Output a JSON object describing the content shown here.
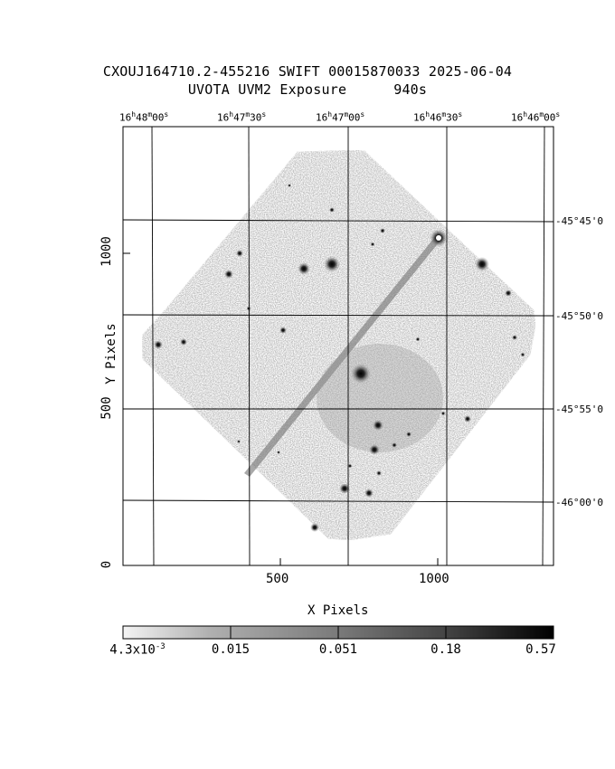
{
  "title": {
    "line1": "CXOUJ164710.2-455216 SWIFT 00015870033 2025-06-04",
    "line2_prefix": "UVOTA UVM2 Exposure",
    "line2_value": "940s"
  },
  "axes": {
    "xlabel": "X Pixels",
    "ylabel": "Y Pixels",
    "x_ticks": [
      "500",
      "1000"
    ],
    "y_ticks": [
      "0",
      "500",
      "1000"
    ],
    "ra_ticks": [
      {
        "h": "16",
        "m": "48",
        "s": "00"
      },
      {
        "h": "16",
        "m": "47",
        "s": "30"
      },
      {
        "h": "16",
        "m": "47",
        "s": "00"
      },
      {
        "h": "16",
        "m": "46",
        "s": "30"
      },
      {
        "h": "16",
        "m": "46",
        "s": "00"
      }
    ],
    "dec_ticks": [
      "-45°45'0",
      "-45°50'0",
      "-45°55'0",
      "-46°00'0"
    ]
  },
  "colorbar": {
    "ticks": [
      "0.015",
      "0.051",
      "0.18",
      "0.57"
    ],
    "min_mantissa": "4.3x10",
    "min_exponent": "-3"
  },
  "colors": {
    "background": "#ffffff",
    "sky": "#b4b4b4",
    "frame": "#000000"
  }
}
